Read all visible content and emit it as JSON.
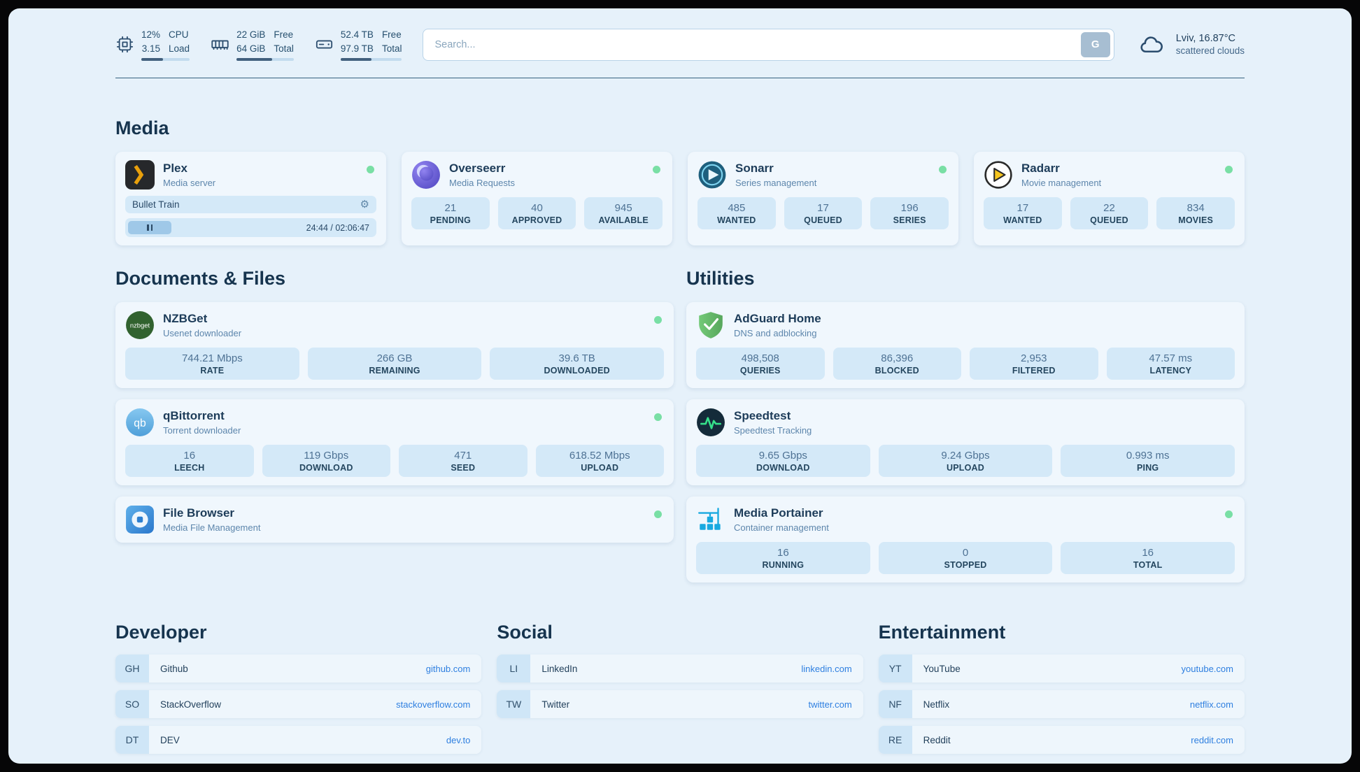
{
  "icons": {
    "gear": "⚙"
  },
  "header": {
    "monitors": [
      {
        "v1": "12%",
        "l1": "CPU",
        "v2": "3.15",
        "l2": "Load",
        "progress": 45
      },
      {
        "v1": "22 GiB",
        "l1": "Free",
        "v2": "64 GiB",
        "l2": "Total",
        "progress": 62
      },
      {
        "v1": "52.4 TB",
        "l1": "Free",
        "v2": "97.9 TB",
        "l2": "Total",
        "progress": 50
      }
    ],
    "search": {
      "placeholder": "Search...",
      "button": "G"
    },
    "weather": {
      "location": "Lviv, 16.87°C",
      "condition": "scattered clouds"
    }
  },
  "media": {
    "title": "Media",
    "plex": {
      "name": "Plex",
      "desc": "Media server",
      "now_playing": "Bullet Train",
      "time": "24:44 / 02:06:47",
      "progress": 18
    },
    "overseerr": {
      "name": "Overseerr",
      "desc": "Media Requests",
      "stats": [
        {
          "v": "21",
          "l": "PENDING"
        },
        {
          "v": "40",
          "l": "APPROVED"
        },
        {
          "v": "945",
          "l": "AVAILABLE"
        }
      ]
    },
    "sonarr": {
      "name": "Sonarr",
      "desc": "Series management",
      "stats": [
        {
          "v": "485",
          "l": "WANTED"
        },
        {
          "v": "17",
          "l": "QUEUED"
        },
        {
          "v": "196",
          "l": "SERIES"
        }
      ]
    },
    "radarr": {
      "name": "Radarr",
      "desc": "Movie management",
      "stats": [
        {
          "v": "17",
          "l": "WANTED"
        },
        {
          "v": "22",
          "l": "QUEUED"
        },
        {
          "v": "834",
          "l": "MOVIES"
        }
      ]
    }
  },
  "documents": {
    "title": "Documents & Files",
    "nzbget": {
      "name": "NZBGet",
      "desc": "Usenet downloader",
      "stats": [
        {
          "v": "744.21 Mbps",
          "l": "RATE"
        },
        {
          "v": "266 GB",
          "l": "REMAINING"
        },
        {
          "v": "39.6 TB",
          "l": "DOWNLOADED"
        }
      ]
    },
    "qbittorrent": {
      "name": "qBittorrent",
      "desc": "Torrent downloader",
      "stats": [
        {
          "v": "16",
          "l": "LEECH"
        },
        {
          "v": "119 Gbps",
          "l": "DOWNLOAD"
        },
        {
          "v": "471",
          "l": "SEED"
        },
        {
          "v": "618.52 Mbps",
          "l": "UPLOAD"
        }
      ]
    },
    "filebrowser": {
      "name": "File Browser",
      "desc": "Media File Management"
    }
  },
  "utilities": {
    "title": "Utilities",
    "adguard": {
      "name": "AdGuard Home",
      "desc": "DNS and adblocking",
      "stats": [
        {
          "v": "498,508",
          "l": "QUERIES"
        },
        {
          "v": "86,396",
          "l": "BLOCKED"
        },
        {
          "v": "2,953",
          "l": "FILTERED"
        },
        {
          "v": "47.57 ms",
          "l": "LATENCY"
        }
      ]
    },
    "speedtest": {
      "name": "Speedtest",
      "desc": "Speedtest Tracking",
      "stats": [
        {
          "v": "9.65 Gbps",
          "l": "DOWNLOAD"
        },
        {
          "v": "9.24 Gbps",
          "l": "UPLOAD"
        },
        {
          "v": "0.993 ms",
          "l": "PING"
        }
      ]
    },
    "portainer": {
      "name": "Media Portainer",
      "desc": "Container management",
      "stats": [
        {
          "v": "16",
          "l": "RUNNING"
        },
        {
          "v": "0",
          "l": "STOPPED"
        },
        {
          "v": "16",
          "l": "TOTAL"
        }
      ]
    }
  },
  "bookmarks": [
    {
      "title": "Developer",
      "items": [
        {
          "abbr": "GH",
          "name": "Github",
          "link": "github.com"
        },
        {
          "abbr": "SO",
          "name": "StackOverflow",
          "link": "stackoverflow.com"
        },
        {
          "abbr": "DT",
          "name": "DEV",
          "link": "dev.to"
        }
      ]
    },
    {
      "title": "Social",
      "items": [
        {
          "abbr": "LI",
          "name": "LinkedIn",
          "link": "linkedin.com"
        },
        {
          "abbr": "TW",
          "name": "Twitter",
          "link": "twitter.com"
        }
      ]
    },
    {
      "title": "Entertainment",
      "items": [
        {
          "abbr": "YT",
          "name": "YouTube",
          "link": "youtube.com"
        },
        {
          "abbr": "NF",
          "name": "Netflix",
          "link": "netflix.com"
        },
        {
          "abbr": "RE",
          "name": "Reddit",
          "link": "reddit.com"
        }
      ]
    }
  ]
}
